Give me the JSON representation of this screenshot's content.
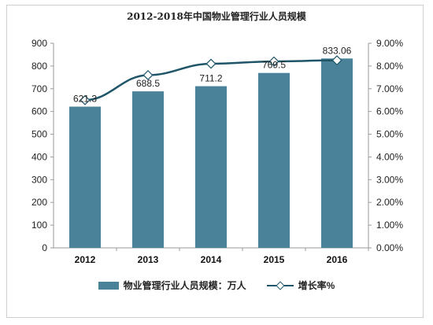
{
  "title": "2012-2018年中国物业管理行业人员规模",
  "colors": {
    "bar": "#4a8299",
    "line": "#1f5568",
    "marker_fill": "#ffffff",
    "axis": "#999999"
  },
  "chart_data": {
    "type": "bar",
    "categories": [
      "2012",
      "2013",
      "2014",
      "2015",
      "2016"
    ],
    "series": [
      {
        "name": "物业管理行业人员规模：万人",
        "type": "bar",
        "axis": "left",
        "values": [
          621.3,
          688.5,
          711.2,
          769.5,
          833.06
        ],
        "labels": [
          "621.3",
          "688.5",
          "711.2",
          "769.5",
          "833.06"
        ]
      },
      {
        "name": "增长率%",
        "type": "line",
        "axis": "right",
        "values": [
          6.5,
          7.6,
          8.1,
          8.2,
          8.25
        ]
      }
    ],
    "ylim": [
      0,
      900
    ],
    "yticks": [
      "0",
      "100",
      "200",
      "300",
      "400",
      "500",
      "600",
      "700",
      "800",
      "900"
    ],
    "y2lim": [
      0,
      9
    ],
    "y2ticks": [
      "0.00%",
      "1.00%",
      "2.00%",
      "3.00%",
      "4.00%",
      "5.00%",
      "6.00%",
      "7.00%",
      "8.00%",
      "9.00%"
    ],
    "grid": false,
    "legend": "bottom"
  }
}
